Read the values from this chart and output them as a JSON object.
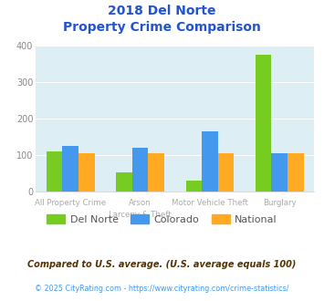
{
  "title_line1": "2018 Del Norte",
  "title_line2": "Property Crime Comparison",
  "category_labels_line1": [
    "All Property Crime",
    "Arson",
    "Motor Vehicle Theft",
    "Burglary"
  ],
  "category_labels_line2": [
    "",
    "Larceny & Theft",
    "",
    ""
  ],
  "del_norte": [
    110,
    52,
    30,
    375
  ],
  "colorado": [
    125,
    120,
    165,
    103
  ],
  "national": [
    103,
    103,
    103,
    103
  ],
  "del_norte_color": "#77cc22",
  "colorado_color": "#4499ee",
  "national_color": "#ffaa22",
  "title_color": "#2255cc",
  "plot_bg": "#ddeef5",
  "ylim": [
    0,
    400
  ],
  "yticks": [
    0,
    100,
    200,
    300,
    400
  ],
  "grid_color": "#ffffff",
  "legend_labels": [
    "Del Norte",
    "Colorado",
    "National"
  ],
  "footnote1": "Compared to U.S. average. (U.S. average equals 100)",
  "footnote2": "© 2025 CityRating.com - https://www.cityrating.com/crime-statistics/",
  "footnote1_color": "#553300",
  "footnote2_color": "#4499ee",
  "xtick_color": "#aaaaaa"
}
